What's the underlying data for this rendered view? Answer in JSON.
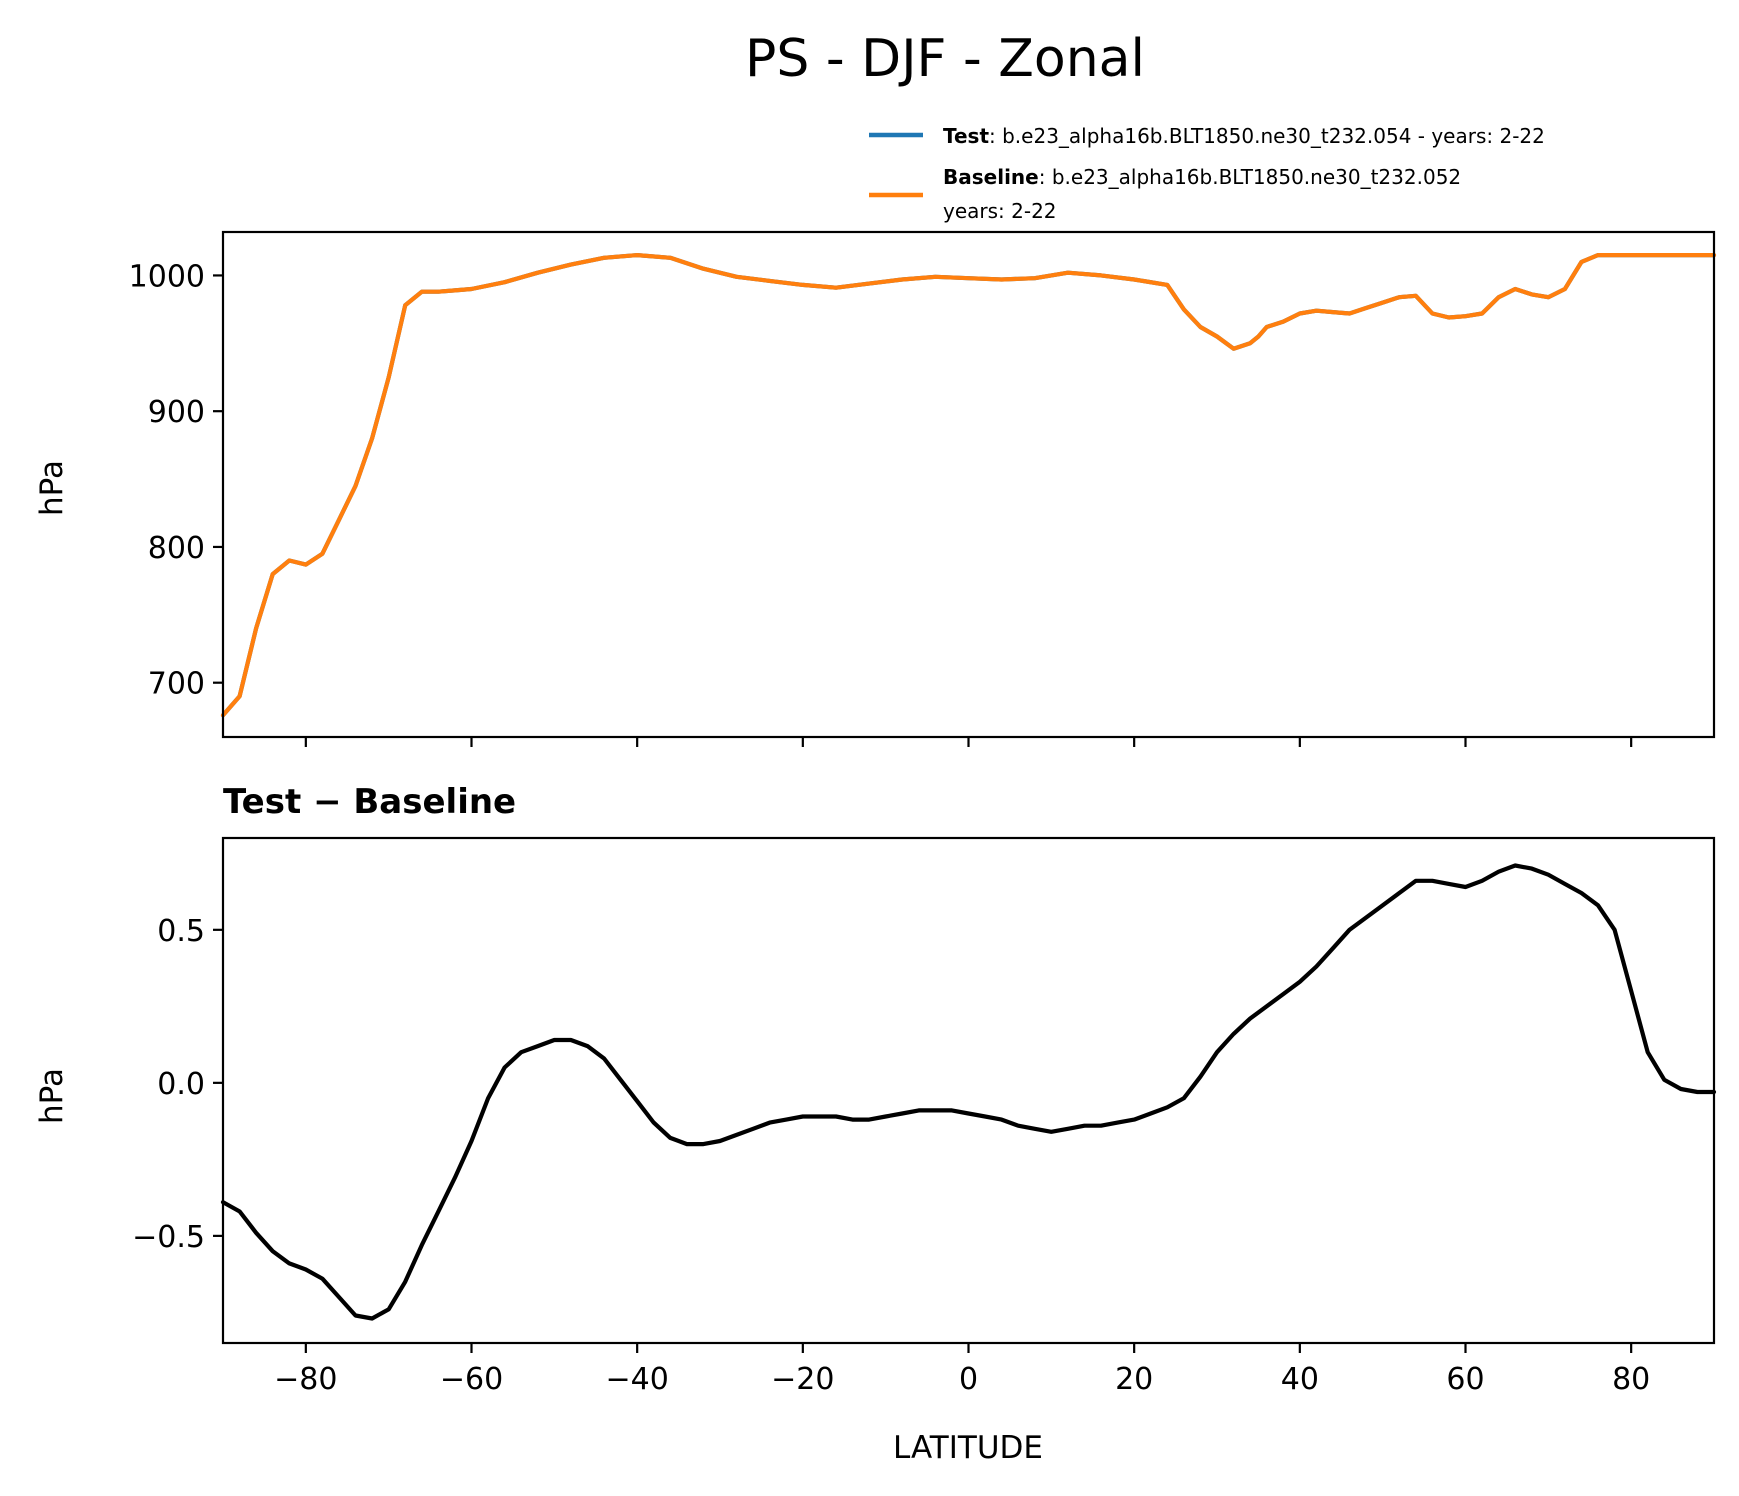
{
  "chart_data": [
    {
      "type": "line",
      "title": "PS - DJF - Zonal",
      "xlabel": "",
      "ylabel": "hPa",
      "xlim": [
        -90,
        90
      ],
      "ylim": [
        660,
        1032
      ],
      "x_ticks": [
        -80,
        -60,
        -40,
        -20,
        0,
        20,
        40,
        60,
        80
      ],
      "y_ticks": [
        700,
        800,
        900,
        1000
      ],
      "y_tick_labels": [
        "700",
        "800",
        "900",
        "1000"
      ],
      "legend": {
        "position": "top-right",
        "entries": [
          {
            "name": "Test",
            "text": ": b.e23_alpha16b.BLT1850.ne30_t232.054 - years: 2-22",
            "color": "#1f77b4"
          },
          {
            "name": "Baseline",
            "text": ": b.e23_alpha16b.BLT1850.ne30_t232.052",
            "text2": "years: 2-22",
            "color": "#ff7f0e"
          }
        ]
      },
      "x": [
        -90,
        -88,
        -86,
        -84,
        -82,
        -80,
        -78,
        -76,
        -74,
        -72,
        -70,
        -68,
        -66,
        -64,
        -62,
        -60,
        -56,
        -52,
        -48,
        -44,
        -40,
        -36,
        -32,
        -28,
        -24,
        -20,
        -16,
        -12,
        -8,
        -4,
        0,
        4,
        8,
        12,
        16,
        20,
        24,
        26,
        28,
        30,
        32,
        34,
        35,
        36,
        38,
        40,
        42,
        44,
        46,
        48,
        50,
        52,
        54,
        56,
        58,
        60,
        62,
        64,
        66,
        68,
        70,
        72,
        74,
        76,
        78,
        80,
        82,
        84,
        86,
        88,
        90
      ],
      "series": [
        {
          "name": "Test",
          "color": "#1f77b4",
          "values": [
            676,
            690,
            740,
            780,
            790,
            787,
            795,
            820,
            845,
            880,
            925,
            978,
            988,
            988,
            989,
            990,
            995,
            1002,
            1008,
            1013,
            1015,
            1013,
            1005,
            999,
            996,
            993,
            991,
            994,
            997,
            999,
            998,
            997,
            998,
            1002,
            1000,
            997,
            993,
            975,
            962,
            955,
            946,
            950,
            955,
            962,
            966,
            972,
            974,
            973,
            972,
            976,
            980,
            984,
            985,
            972,
            969,
            970,
            972,
            984,
            990,
            986,
            984,
            990,
            1010,
            1015,
            1015,
            1015,
            1015,
            1015,
            1015,
            1015,
            1015
          ]
        },
        {
          "name": "Baseline",
          "color": "#ff7f0e",
          "values": [
            676,
            690,
            740,
            780,
            790,
            787,
            795,
            820,
            845,
            880,
            925,
            978,
            988,
            988,
            989,
            990,
            995,
            1002,
            1008,
            1013,
            1015,
            1013,
            1005,
            999,
            996,
            993,
            991,
            994,
            997,
            999,
            998,
            997,
            998,
            1002,
            1000,
            997,
            993,
            975,
            962,
            955,
            946,
            950,
            955,
            962,
            966,
            972,
            974,
            973,
            972,
            976,
            980,
            984,
            985,
            972,
            969,
            970,
            972,
            984,
            990,
            986,
            984,
            990,
            1010,
            1015,
            1015,
            1015,
            1015,
            1015,
            1015,
            1015,
            1015
          ]
        }
      ]
    },
    {
      "type": "line",
      "title": "Test − Baseline",
      "xlabel": "LATITUDE",
      "ylabel": "hPa",
      "xlim": [
        -90,
        90
      ],
      "ylim": [
        -0.85,
        0.8
      ],
      "x_ticks": [
        -80,
        -60,
        -40,
        -20,
        0,
        20,
        40,
        60,
        80
      ],
      "x_tick_labels": [
        "−80",
        "−60",
        "−40",
        "−20",
        "0",
        "20",
        "40",
        "60",
        "80"
      ],
      "y_ticks": [
        -0.5,
        0.0,
        0.5
      ],
      "y_tick_labels": [
        "−0.5",
        "0.0",
        "0.5"
      ],
      "x": [
        -90,
        -88,
        -86,
        -84,
        -82,
        -80,
        -78,
        -76,
        -74,
        -72,
        -70,
        -68,
        -66,
        -64,
        -62,
        -60,
        -58,
        -56,
        -54,
        -52,
        -50,
        -48,
        -46,
        -44,
        -42,
        -40,
        -38,
        -36,
        -34,
        -32,
        -30,
        -28,
        -26,
        -24,
        -22,
        -20,
        -18,
        -16,
        -14,
        -12,
        -10,
        -8,
        -6,
        -4,
        -2,
        0,
        2,
        4,
        6,
        8,
        10,
        12,
        14,
        16,
        18,
        20,
        22,
        24,
        26,
        28,
        30,
        32,
        34,
        36,
        38,
        40,
        42,
        44,
        46,
        48,
        50,
        52,
        54,
        56,
        58,
        60,
        62,
        64,
        66,
        68,
        70,
        72,
        74,
        76,
        78,
        80,
        82,
        84,
        86,
        88,
        90
      ],
      "series": [
        {
          "name": "Test − Baseline",
          "color": "#000000",
          "values": [
            -0.39,
            -0.42,
            -0.49,
            -0.55,
            -0.59,
            -0.61,
            -0.64,
            -0.7,
            -0.76,
            -0.77,
            -0.74,
            -0.65,
            -0.53,
            -0.42,
            -0.31,
            -0.19,
            -0.05,
            0.05,
            0.1,
            0.12,
            0.14,
            0.14,
            0.12,
            0.08,
            0.01,
            -0.06,
            -0.13,
            -0.18,
            -0.2,
            -0.2,
            -0.19,
            -0.17,
            -0.15,
            -0.13,
            -0.12,
            -0.11,
            -0.11,
            -0.11,
            -0.12,
            -0.12,
            -0.11,
            -0.1,
            -0.09,
            -0.09,
            -0.09,
            -0.1,
            -0.11,
            -0.12,
            -0.14,
            -0.15,
            -0.16,
            -0.15,
            -0.14,
            -0.14,
            -0.13,
            -0.12,
            -0.1,
            -0.08,
            -0.05,
            0.02,
            0.1,
            0.16,
            0.21,
            0.25,
            0.29,
            0.33,
            0.38,
            0.44,
            0.5,
            0.54,
            0.58,
            0.62,
            0.66,
            0.66,
            0.65,
            0.64,
            0.66,
            0.69,
            0.71,
            0.7,
            0.68,
            0.65,
            0.62,
            0.58,
            0.5,
            0.3,
            0.1,
            0.01,
            -0.02,
            -0.03,
            -0.03
          ]
        }
      ]
    }
  ]
}
